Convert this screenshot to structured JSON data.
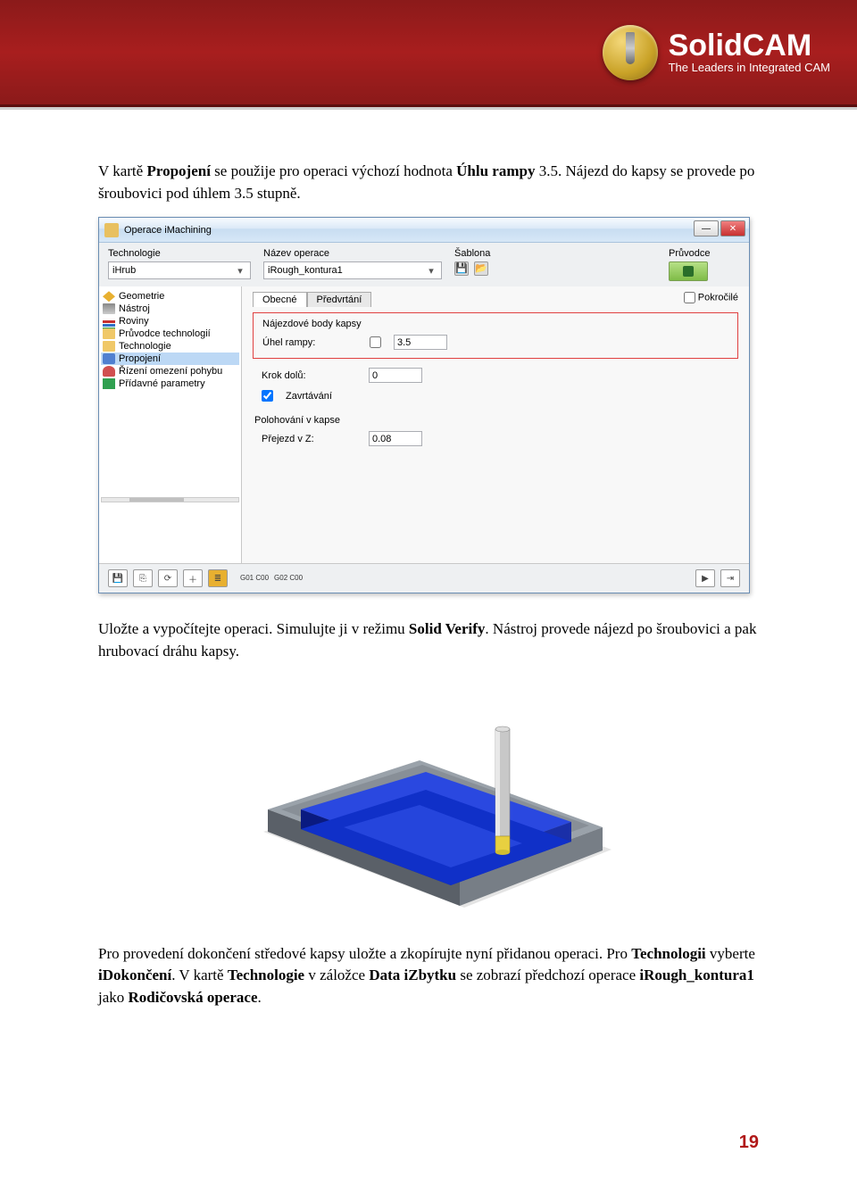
{
  "header": {
    "logo_title": "SolidCAM",
    "logo_sub": "The Leaders in Integrated CAM"
  },
  "para1_pre": "V kartě ",
  "para1_b1": "Propojení",
  "para1_mid": " se použije pro operaci výchozí hodnota ",
  "para1_b2": "Úhlu rampy",
  "para1_post": " 3.5. Nájezd do kapsy se provede po šroubovici pod úhlem 3.5 stupně.",
  "dialog": {
    "title": "Operace iMachining",
    "tech_label": "Technologie",
    "tech_value": "iHrub",
    "opname_label": "Název operace",
    "opname_value": "iRough_kontura1",
    "template_label": "Šablona",
    "guide_label": "Průvodce",
    "tree": [
      {
        "icon": "ti-geom",
        "label": "Geometrie"
      },
      {
        "icon": "ti-tool",
        "label": "Nástroj"
      },
      {
        "icon": "ti-levels",
        "label": "Roviny"
      },
      {
        "icon": "ti-folder",
        "label": "Průvodce technologií"
      },
      {
        "icon": "ti-folder",
        "label": "Technologie"
      },
      {
        "icon": "ti-link",
        "label": "Propojení",
        "selected": true
      },
      {
        "icon": "ti-motion",
        "label": "Řízení omezení pohybu"
      },
      {
        "icon": "ti-plus",
        "label": "Přídavné parametry"
      }
    ],
    "tab1": "Obecné",
    "tab2": "Předvrtání",
    "pokrocile": "Pokročilé",
    "group1_title": "Nájezdové body kapsy",
    "ramp_angle_label": "Úhel rampy:",
    "ramp_angle_value": "3.5",
    "step_label": "Krok dolů:",
    "step_value": "0",
    "zavrt_label": "Zavrtávání",
    "group2_title": "Polohování v kapse",
    "prejezd_label": "Přejezd v Z:",
    "prejezd_value": "0.08",
    "gcode1": "G01\nC00",
    "gcode2": "G02\nC00"
  },
  "para2_pre": "Uložte a vypočítejte operaci. Simulujte ji v režimu ",
  "para2_b1": "Solid Verify",
  "para2_post": ". Nástroj provede nájezd po šroubovici a pak hrubovací dráhu kapsy.",
  "para3_pre": "Pro provedení dokončení středové kapsy uložte a zkopírujte nyní přidanou operaci. Pro ",
  "para3_b1": "Technologii",
  "para3_mid1": " vyberte ",
  "para3_b2": "iDokončení",
  "para3_mid2": ". V kartě ",
  "para3_b3": "Technologie",
  "para3_mid3": " v záložce ",
  "para3_b4": "Data iZbytku",
  "para3_mid4": " se zobrazí předchozí operace ",
  "para3_b5": "iRough_kontura1",
  "para3_mid5": " jako ",
  "para3_b6": "Rodičovská operace",
  "para3_end": ".",
  "page_number": "19",
  "colors": {
    "header_bg": "#8b1a1a",
    "accent_red": "#b01818",
    "pocket_blue": "#1030c0",
    "part_gray": "#808890",
    "tool_body": "#c8c8c8",
    "tool_tip": "#e8d040",
    "highlight_border": "#e04040"
  },
  "render": {
    "pocket_color": "#1838d8",
    "pocket_dark": "#0a1a80",
    "wall_top": "#9aa2aa",
    "wall_side_light": "#c2c8ce",
    "wall_side_dark": "#5a6068",
    "floor_shadow": "#d8d8d8"
  }
}
